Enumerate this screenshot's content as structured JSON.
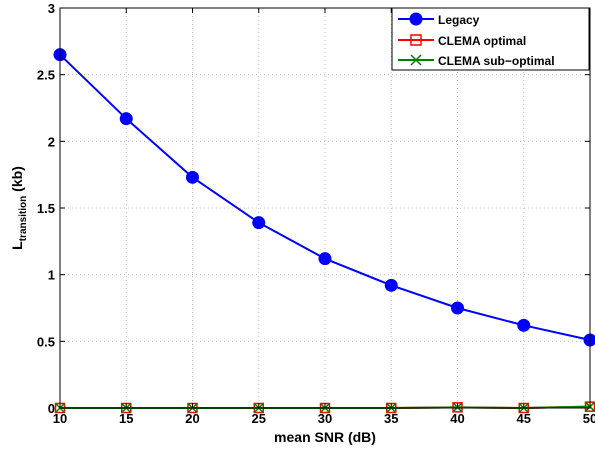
{
  "chart_data": {
    "type": "line",
    "xlabel": "mean SNR (dB)",
    "ylabel_main": "L",
    "ylabel_sub": "transition",
    "ylabel_unit": " (kb)",
    "xlim": [
      10,
      50
    ],
    "ylim": [
      0,
      3
    ],
    "grid": true,
    "legend_position": "top-right",
    "x": [
      10,
      15,
      20,
      25,
      30,
      35,
      40,
      45,
      50
    ],
    "x_ticks": [
      "10",
      "15",
      "20",
      "25",
      "30",
      "35",
      "40",
      "45",
      "50"
    ],
    "y_ticks": [
      {
        "value": 0,
        "label": "0"
      },
      {
        "value": 0.5,
        "label": "0.5"
      },
      {
        "value": 1,
        "label": "1"
      },
      {
        "value": 1.5,
        "label": "1.5"
      },
      {
        "value": 2,
        "label": "2"
      },
      {
        "value": 2.5,
        "label": "2.5"
      },
      {
        "value": 3,
        "label": "3"
      }
    ],
    "series": [
      {
        "name": "Legacy",
        "color": "#0000ff",
        "marker": "circle",
        "values": [
          2.65,
          2.17,
          1.73,
          1.39,
          1.12,
          0.92,
          0.75,
          0.62,
          0.51
        ]
      },
      {
        "name": "CLEMA optimal",
        "color": "#ff0000",
        "marker": "square",
        "values": [
          0.0,
          0.0,
          0.0,
          0.0,
          0.0,
          0.0,
          0.005,
          0.0,
          0.01
        ]
      },
      {
        "name": "CLEMA sub−optimal",
        "color": "#008000",
        "marker": "x",
        "values": [
          0.0,
          0.0,
          0.0,
          0.0,
          0.0,
          0.0,
          0.005,
          0.0,
          0.01
        ]
      }
    ]
  }
}
